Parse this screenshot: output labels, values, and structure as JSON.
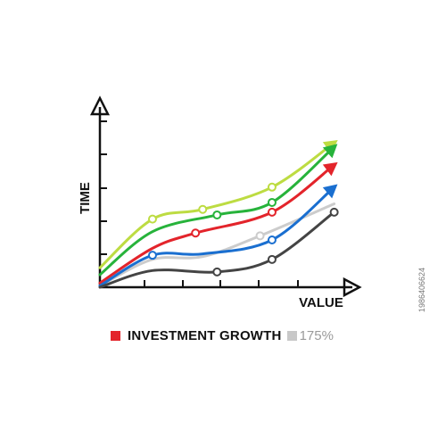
{
  "chart_data": {
    "type": "line",
    "title": "",
    "xlabel": "VALUE",
    "ylabel": "TIME",
    "xlim": [
      0,
      10
    ],
    "ylim": [
      0,
      6
    ],
    "grid": false,
    "series": [
      {
        "color": "#bddc42",
        "points": [
          [
            0,
            0.7
          ],
          [
            2.2,
            2.45
          ],
          [
            4.3,
            2.8
          ],
          [
            7.2,
            3.6
          ],
          [
            9.8,
            5.2
          ]
        ],
        "markers": [
          [
            2.2,
            2.45
          ],
          [
            4.3,
            2.8
          ],
          [
            7.2,
            3.6
          ]
        ],
        "arrow": true
      },
      {
        "color": "#27b33b",
        "points": [
          [
            0,
            0.45
          ],
          [
            2.2,
            2.0
          ],
          [
            4.9,
            2.6
          ],
          [
            7.2,
            3.05
          ],
          [
            9.8,
            5.05
          ]
        ],
        "markers": [
          [
            4.9,
            2.6
          ],
          [
            7.2,
            3.05
          ]
        ],
        "arrow": true
      },
      {
        "color": "#e3242b",
        "points": [
          [
            0,
            0.15
          ],
          [
            2.2,
            1.4
          ],
          [
            4.0,
            1.95
          ],
          [
            7.2,
            2.7
          ],
          [
            9.8,
            4.4
          ]
        ],
        "markers": [
          [
            4.0,
            1.95
          ],
          [
            7.2,
            2.7
          ]
        ],
        "arrow": true
      },
      {
        "color": "#cccccc",
        "points": [
          [
            0,
            0.05
          ],
          [
            2.2,
            1.0
          ],
          [
            4.3,
            1.1
          ],
          [
            6.7,
            1.85
          ],
          [
            9.8,
            3.0
          ]
        ],
        "markers": [
          [
            6.7,
            1.85
          ]
        ],
        "arrow": false
      },
      {
        "color": "#1a6fd0",
        "points": [
          [
            0,
            0.05
          ],
          [
            2.2,
            1.15
          ],
          [
            4.3,
            1.2
          ],
          [
            7.2,
            1.7
          ],
          [
            9.8,
            3.6
          ]
        ],
        "markers": [
          [
            2.2,
            1.15
          ],
          [
            7.2,
            1.7
          ]
        ],
        "arrow": true
      },
      {
        "color": "#444444",
        "points": [
          [
            0,
            0.0
          ],
          [
            2.2,
            0.6
          ],
          [
            4.9,
            0.55
          ],
          [
            7.2,
            1.0
          ],
          [
            9.8,
            2.7
          ]
        ],
        "markers": [
          [
            4.9,
            0.55
          ],
          [
            7.2,
            1.0
          ],
          [
            9.8,
            2.7
          ]
        ],
        "arrow": false
      }
    ]
  },
  "legend": {
    "swatch_color": "#e3242b",
    "pct_swatch_color": "#c8c8c8",
    "text": "INVESTMENT GROWTH",
    "pct": "175%"
  },
  "watermark": "1986406624"
}
